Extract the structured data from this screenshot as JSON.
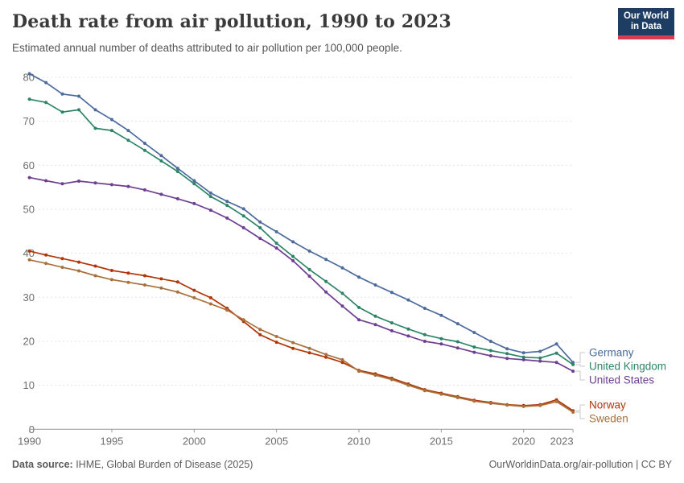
{
  "header": {
    "title": "Death rate from air pollution, 1990 to 2023",
    "subtitle": "Estimated annual number of deaths attributed to air pollution per 100,000 people.",
    "logo": {
      "line1": "Our World",
      "line2": "in Data"
    }
  },
  "footer": {
    "source_label": "Data source:",
    "source_value": " IHME, Global Burden of Disease (2025)",
    "right": "OurWorldinData.org/air-pollution | CC BY"
  },
  "chart_data": {
    "type": "line",
    "title": "Death rate from air pollution, 1990 to 2023",
    "xlabel": "",
    "ylabel": "",
    "x": [
      1990,
      1991,
      1992,
      1993,
      1994,
      1995,
      1996,
      1997,
      1998,
      1999,
      2000,
      2001,
      2002,
      2003,
      2004,
      2005,
      2006,
      2007,
      2008,
      2009,
      2010,
      2011,
      2012,
      2013,
      2014,
      2015,
      2016,
      2017,
      2018,
      2019,
      2020,
      2021,
      2022,
      2023
    ],
    "series": [
      {
        "name": "Germany",
        "color": "#4C6A9C",
        "values": [
          80.8,
          78.8,
          76.2,
          75.7,
          72.6,
          70.4,
          67.9,
          65.0,
          62.2,
          59.3,
          56.5,
          53.7,
          51.8,
          50.1,
          47.1,
          44.9,
          42.6,
          40.5,
          38.6,
          36.7,
          34.6,
          32.8,
          31.1,
          29.4,
          27.5,
          25.9,
          24.0,
          22.0,
          20.0,
          18.3,
          17.4,
          17.7,
          19.4,
          15.2
        ]
      },
      {
        "name": "United Kingdom",
        "color": "#2C8465",
        "values": [
          75.0,
          74.3,
          72.1,
          72.6,
          68.4,
          67.9,
          65.7,
          63.4,
          61.0,
          58.6,
          55.8,
          52.9,
          50.9,
          48.5,
          45.8,
          42.3,
          39.3,
          36.3,
          33.6,
          30.9,
          27.7,
          25.7,
          24.2,
          22.8,
          21.5,
          20.6,
          19.9,
          18.7,
          17.9,
          17.2,
          16.4,
          16.2,
          17.3,
          14.7
        ]
      },
      {
        "name": "United States",
        "color": "#6D3E91",
        "values": [
          57.2,
          56.5,
          55.8,
          56.4,
          56.0,
          55.6,
          55.2,
          54.4,
          53.4,
          52.4,
          51.3,
          49.8,
          48.0,
          45.8,
          43.4,
          41.2,
          38.3,
          34.8,
          31.2,
          28.0,
          24.9,
          23.8,
          22.4,
          21.2,
          20.0,
          19.4,
          18.5,
          17.5,
          16.7,
          16.1,
          15.8,
          15.5,
          15.2,
          13.2
        ]
      },
      {
        "name": "Norway",
        "color": "#B13507",
        "values": [
          40.5,
          39.6,
          38.8,
          38.0,
          37.1,
          36.1,
          35.5,
          34.9,
          34.2,
          33.5,
          31.6,
          29.9,
          27.5,
          24.5,
          21.5,
          19.8,
          18.4,
          17.4,
          16.4,
          15.2,
          13.4,
          12.6,
          11.6,
          10.3,
          9.0,
          8.2,
          7.4,
          6.6,
          6.1,
          5.6,
          5.4,
          5.6,
          6.7,
          4.2
        ]
      },
      {
        "name": "Sweden",
        "color": "#A8713C",
        "values": [
          38.5,
          37.7,
          36.8,
          36.0,
          34.9,
          34.0,
          33.4,
          32.8,
          32.1,
          31.2,
          29.9,
          28.5,
          27.1,
          24.9,
          22.7,
          21.1,
          19.7,
          18.4,
          17.0,
          15.8,
          13.2,
          12.3,
          11.3,
          10.0,
          8.8,
          8.0,
          7.2,
          6.4,
          5.9,
          5.5,
          5.2,
          5.4,
          6.3,
          3.9
        ]
      }
    ],
    "ylim": [
      0,
      80
    ],
    "yticks": [
      0,
      10,
      20,
      30,
      40,
      50,
      60,
      70,
      80
    ],
    "xticks": [
      1990,
      1995,
      2000,
      2005,
      2010,
      2015,
      2020,
      2023
    ],
    "grid": "horizontal-dashed",
    "legend_position": "right-of-lines"
  },
  "colors": {
    "grid": "#e3e3e3",
    "axis": "#999999",
    "tick_label": "#6e6e6e",
    "connector": "#c9c9c9"
  }
}
